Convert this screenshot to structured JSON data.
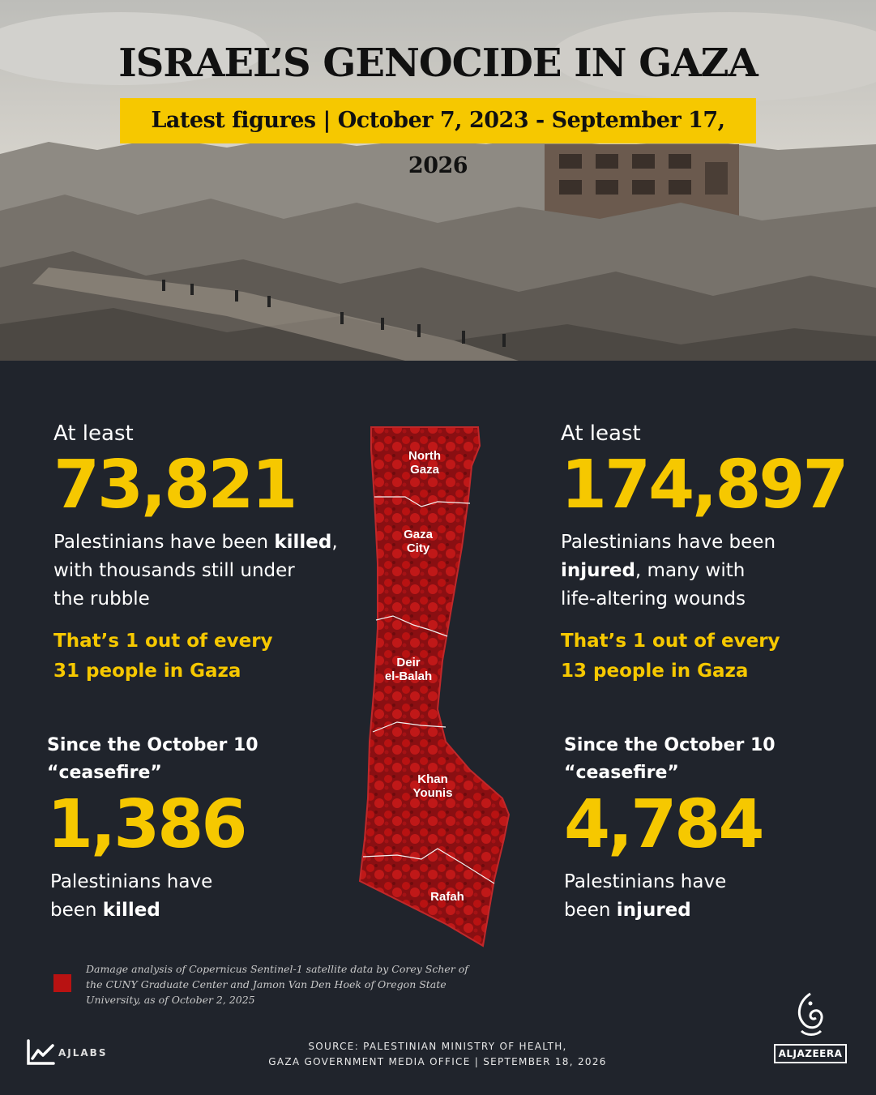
{
  "header": {
    "title": "ISRAEL’S GENOCIDE IN GAZA",
    "subtitle": "Latest figures | October 7, 2023 - September 17, 2026"
  },
  "killed": {
    "prefix": "At least",
    "number": "73,821",
    "desc_line1_pre": "Palestinians have been ",
    "desc_line1_bold": "killed",
    "desc_line1_post": ",",
    "desc_line2": "with thousands still under",
    "desc_line3": "the rubble",
    "ratio_line1": "That’s 1 out of every",
    "ratio_line2": "31 people in Gaza"
  },
  "injured": {
    "prefix": "At least",
    "number": "174,897",
    "desc_line1": "Palestinians have been",
    "desc_line2_bold": "injured",
    "desc_line2_post": ", many with",
    "desc_line3": "life-altering wounds",
    "ratio_line1": "That’s 1 out of every",
    "ratio_line2": "13 people in Gaza"
  },
  "ceasefire_killed": {
    "since_line1": "Since the October 10",
    "since_line2": "“ceasefire”",
    "number": "1,386",
    "desc_line1": "Palestinians have",
    "desc_line2_pre": "been ",
    "desc_line2_bold": "killed"
  },
  "ceasefire_injured": {
    "since_line1": "Since the October 10",
    "since_line2": "“ceasefire”",
    "number": "4,784",
    "desc_line1": "Palestinians have",
    "desc_line2_pre": "been ",
    "desc_line2_bold": "injured"
  },
  "map": {
    "regions": [
      {
        "line1": "North",
        "line2": "Gaza"
      },
      {
        "line1": "Gaza",
        "line2": "City"
      },
      {
        "line1": "Deir",
        "line2": "el-Balah"
      },
      {
        "line1": "Khan",
        "line2": "Younis"
      },
      {
        "line1": "Rafah",
        "line2": ""
      }
    ],
    "damage_color": "#b81212"
  },
  "legend": {
    "text": "Damage analysis of Copernicus Sentinel-1 satellite data by  Corey Scher of the CUNY Graduate Center and Jamon Van Den Hoek of Oregon State University, as of  October 2, 2025"
  },
  "footer": {
    "source_line1": "SOURCE:  PALESTINIAN MINISTRY OF HEALTH,",
    "source_line2": "GAZA GOVERNMENT MEDIA OFFICE   |   SEPTEMBER 18, 2026",
    "ajlabs": "AJLABS",
    "aljazeera": "ALJAZEERA"
  },
  "colors": {
    "accent": "#f6c800",
    "background": "#20242c",
    "damage": "#b81212"
  }
}
